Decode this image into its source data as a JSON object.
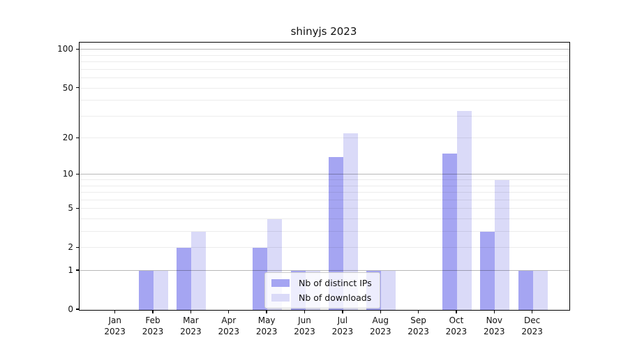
{
  "chart_data": {
    "type": "bar",
    "title": "shinyjs 2023",
    "months": [
      "Jan",
      "Feb",
      "Mar",
      "Apr",
      "May",
      "Jun",
      "Jul",
      "Aug",
      "Sep",
      "Oct",
      "Nov",
      "Dec"
    ],
    "year": "2023",
    "categories": [
      "Jan 2023",
      "Feb 2023",
      "Mar 2023",
      "Apr 2023",
      "May 2023",
      "Jun 2023",
      "Jul 2023",
      "Aug 2023",
      "Sep 2023",
      "Oct 2023",
      "Nov 2023",
      "Dec 2023"
    ],
    "series": [
      {
        "name": "Nb of distinct IPs",
        "color": "#a5a5f2",
        "values": [
          0,
          1,
          2,
          0,
          2,
          1,
          14,
          1,
          0,
          15,
          3,
          1
        ]
      },
      {
        "name": "Nb of downloads",
        "color": "#dadaf8",
        "values": [
          0,
          1,
          3,
          0,
          4,
          1,
          22,
          1,
          0,
          33,
          9,
          1
        ]
      }
    ],
    "y_axis": {
      "scale": "log1p",
      "ticks": [
        {
          "value": 0,
          "label": "0"
        },
        {
          "value": 1,
          "label": "1"
        },
        {
          "value": 2,
          "label": "2"
        },
        {
          "value": 5,
          "label": "5"
        },
        {
          "value": 10,
          "label": "10"
        },
        {
          "value": 20,
          "label": "20"
        },
        {
          "value": 50,
          "label": "50"
        },
        {
          "value": 100,
          "label": "100"
        }
      ],
      "max": 114
    },
    "grid": {
      "major_values": [
        1,
        10,
        100
      ],
      "minor_values": [
        2,
        3,
        4,
        5,
        6,
        7,
        8,
        9,
        20,
        30,
        40,
        50,
        60,
        70,
        80,
        90
      ]
    },
    "legend": {
      "position": "bottom-center"
    },
    "colors": {
      "spine": "#000000",
      "grid_major": "#b8b8b8",
      "grid_minor": "#ececec",
      "background": "#ffffff"
    }
  }
}
